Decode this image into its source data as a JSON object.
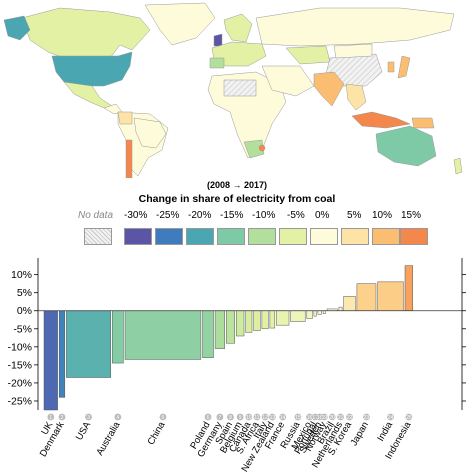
{
  "map": {
    "period_label": "(2008 → 2017)",
    "legend_title": "Change in share of electricity from coal",
    "legend": [
      {
        "label": "No data",
        "color": "hatch"
      },
      {
        "label": "-30%",
        "color": "#5b55a5"
      },
      {
        "label": "-25%",
        "color": "#3f7cbd"
      },
      {
        "label": "-20%",
        "color": "#4aa6b0"
      },
      {
        "label": "-15%",
        "color": "#7fcaa6"
      },
      {
        "label": "-10%",
        "color": "#b2df9c"
      },
      {
        "label": "-5%",
        "color": "#e3f1a4"
      },
      {
        "label": "0%",
        "color": "#fdfbda"
      },
      {
        "label": "5%",
        "color": "#fde4a6"
      },
      {
        "label": "10%",
        "color": "#fbbd72"
      },
      {
        "label": "15%",
        "color": "#f3874c"
      }
    ]
  },
  "chart_data": {
    "type": "bar",
    "categories": [
      "UK",
      "Denmark",
      "USA",
      "Australia",
      "China",
      "Poland",
      "Germany",
      "Spain",
      "Belgium",
      "Canada",
      "S. Africa",
      "Italy",
      "New Zealand",
      "France",
      "Russia",
      "Mexico",
      "Portugal",
      "Sweden",
      "Norway",
      "Brazil",
      "Netherlands",
      "S. Korea",
      "Japan",
      "India",
      "Indonesia"
    ],
    "rank_labels": [
      "1",
      "2",
      "3",
      "4",
      "5",
      "6",
      "7",
      "8",
      "9",
      "10",
      "11",
      "12",
      "13",
      "14",
      "15",
      "16",
      "17",
      "18",
      "19",
      "20",
      "21",
      "22",
      "23",
      "24",
      "25"
    ],
    "values": [
      -27.5,
      -24,
      -18.5,
      -14.5,
      -13.5,
      -13,
      -10.5,
      -9,
      -7,
      -6,
      -5.5,
      -5,
      -4.8,
      -4,
      -3,
      -2.2,
      -1.5,
      -1,
      -0.8,
      0.5,
      1,
      4,
      7.5,
      8,
      12.5
    ],
    "bar_widths": [
      13.6,
      5.6,
      44.3,
      11.1,
      75.9,
      11.0,
      9.6,
      8.4,
      7.7,
      6.4,
      6.7,
      6.4,
      4.9,
      12.6,
      14.6,
      5.5,
      2.4,
      3.6,
      2.4,
      10.2,
      3.2,
      11.6,
      19.1,
      25.8,
      7.7
    ],
    "ylim": [
      -27.5,
      13.5
    ],
    "yticks": [
      10,
      5,
      0,
      -5,
      -10,
      -15,
      -20,
      -25
    ],
    "ytick_labels": [
      "10%",
      "5%",
      "0%",
      "-5%",
      "-10%",
      "-15%",
      "-20%",
      "-25%"
    ]
  }
}
